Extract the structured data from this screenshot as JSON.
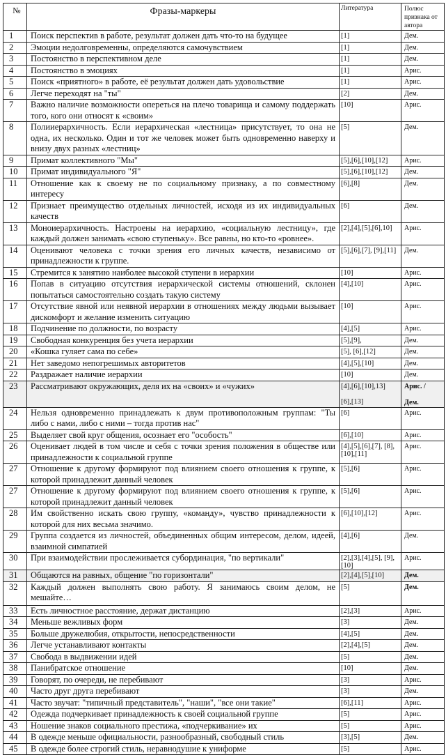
{
  "header": {
    "num": "№",
    "phrase": "Фразы-маркеры",
    "literature": "Литература",
    "pole": "Полюс признака от автора"
  },
  "rows": [
    {
      "num": "1",
      "phrase": "Поиск перспектив в работе, результат должен дать что-то на будущее",
      "lit": "[1]",
      "pole": "Дем."
    },
    {
      "num": "2",
      "phrase": "Эмоции недолговременны, определяются самочувствием",
      "lit": "[1]",
      "pole": "Дем."
    },
    {
      "num": "3",
      "phrase": "Постоянство в перспективном деле",
      "lit": "[1]",
      "pole": "Дем."
    },
    {
      "num": "4",
      "phrase": "Постоянство в эмоциях",
      "lit": "[1]",
      "pole": "Арис."
    },
    {
      "num": "5",
      "phrase": "Поиск «приятного» в работе, её результат должен дать удовольствие",
      "lit": "[1]",
      "pole": "Арис."
    },
    {
      "num": "6",
      "phrase": "Легче переходят на \"ты\"",
      "lit": "[2]",
      "pole": "Дем."
    },
    {
      "num": "7",
      "phrase": "Важно наличие возможности опереться на плечо товарища и самому поддержать того, кого они относят к «своим»",
      "lit": "[10]",
      "pole": "Арис."
    },
    {
      "num": "8",
      "phrase": "Полииерархичность. Если иерархическая «лестница» присутствует, то она не одна, их несколько. Один и тот же человек может быть одновременно наверху и внизу двух разных «лестниц»",
      "lit": "[5]",
      "pole": "Дем."
    },
    {
      "num": "9",
      "phrase": "Примат коллективного \"Мы\"",
      "lit": "[5],[6],[10],[12]",
      "pole": "Арис."
    },
    {
      "num": "10",
      "phrase": "Примат индивидуального \"Я\"",
      "lit": "[5],[6],[10],[12]",
      "pole": "Дем."
    },
    {
      "num": "11",
      "phrase": "Отношение как к своему не по социальному признаку, а по совместному интересу",
      "lit": "[6],[8]",
      "pole": "Дем."
    },
    {
      "num": "12",
      "phrase": "Признает преимущество отдельных личностей, исходя из их индивидуальных качеств",
      "lit": "[6]",
      "pole": "Дем."
    },
    {
      "num": "13",
      "phrase": "Моноиерархичность. Настроены на иерархию, «социальную лестницу», где каждый должен занимать «свою ступеньку». Все равны, но кто-то «ровнее».",
      "lit": "[2],[4],[5],[6],10]",
      "pole": "Арис."
    },
    {
      "num": "14",
      "phrase": "Оценивают человека с точки зрения его личных качеств, независимо от принадлежности к группе.",
      "lit": "[5],[6],[7], [9],[11]",
      "pole": "Дем."
    },
    {
      "num": "15",
      "phrase": "Стремится к занятию наиболее высокой ступени в иерархии",
      "lit": "[10]",
      "pole": "Арис."
    },
    {
      "num": "16",
      "phrase": "Попав в ситуацию отсутствия иерархической системы отношений, склонен попытаться самостоятельно создать такую систему",
      "lit": "[4],[10]",
      "pole": "Арис."
    },
    {
      "num": "17",
      "phrase": "Отсутствие явной или неявной иерархии в отношениях между людьми вызывает дискомфорт и желание изменить ситуацию",
      "lit": "[10]",
      "pole": "Арис."
    },
    {
      "num": "18",
      "phrase": "Подчинение по должности, по возрасту",
      "lit": "[4],[5]",
      "pole": "Арис."
    },
    {
      "num": "19",
      "phrase": "Свободная конкуренция без учета иерархии",
      "lit": "[5],[9],",
      "pole": "Дем."
    },
    {
      "num": "20",
      "phrase": "«Кошка гуляет сама по себе»",
      "lit": "[5], [6],[12]",
      "pole": "Дем."
    },
    {
      "num": "21",
      "phrase": "Нет заведомо непогрешимых авторитетов",
      "lit": "[4],[5],[10]",
      "pole": "Дем."
    },
    {
      "num": "22",
      "phrase": "Раздражает наличие иерархии",
      "lit": "[10]",
      "pole": "Дем."
    },
    {
      "num": "23",
      "phrase": "Рассматривают окружающих, деля их на «своих» и «чужих»",
      "lit": "[4],[6],[10],13]",
      "lit_second": "[6],[13]",
      "pole": "Арис. /",
      "pole_second": "Дем."
    },
    {
      "num": "24",
      "phrase": "Нельзя одновременно принадлежать к двум противоположным группам: \"Ты либо с нами, либо с ними – тогда против нас\"",
      "lit": "[6]",
      "pole": "Арис."
    },
    {
      "num": "25",
      "phrase": "Выделяет свой круг общения, осознает его \"особость\"",
      "lit": "[6],[10]",
      "pole": "Арис."
    },
    {
      "num": "26",
      "phrase": "Оценивает людей в том числе и себя с точки зрения положения в обществе или принадлежности к социальной группе",
      "lit": "[4],[5],[6],[7], [8],[10],[11]",
      "pole": "Арис."
    },
    {
      "num": "27",
      "phrase": "Отношение к другому формируют под влиянием своего отношения к группе, к которой принадлежит данный человек",
      "lit": "[5],[6]",
      "pole": "Арис."
    },
    {
      "num": "27",
      "phrase": "Отношение к другому формируют под влиянием своего отношения к группе, к которой принадлежит данный человек",
      "lit": "[5],[6]",
      "pole": "Арис."
    },
    {
      "num": "28",
      "phrase": "Им свойственно искать свою группу, «команду», чувство принадлежности к которой для них весьма значимо.",
      "lit": "[6],[10],[12]",
      "pole": "Арис."
    },
    {
      "num": "29",
      "phrase": "Группа создается из личностей, объединенных общим интересом, делом, идеей, взаимной симпатией",
      "lit": "[4],[6]",
      "pole": "Дем."
    },
    {
      "num": "30",
      "phrase": "При взаимодействии прослеживается субординация, \"по вертикали\"",
      "lit": "[2],[3],[4],[5], [9],[10]",
      "pole": "Арис."
    },
    {
      "num": "31",
      "phrase": "Общаются на равных, общение \"по горизонтали\"",
      "lit": "[2],[4],[5],[10]",
      "pole": "Дем."
    },
    {
      "num": "32",
      "phrase": "Каждый должен выполнять свою работу. Я занимаюсь своим делом, не мешайте…",
      "lit": "[5]",
      "pole": "Дем."
    },
    {
      "num": "33",
      "phrase": "Есть личностное расстояние, держат дистанцию",
      "lit": "[2],[3]",
      "pole": "Арис."
    },
    {
      "num": "34",
      "phrase": "Меньше вежливых форм",
      "lit": "[3]",
      "pole": "Дем."
    },
    {
      "num": "35",
      "phrase": "Больше дружелюбия, открытости, непосредственности",
      "lit": "[4],[5]",
      "pole": "Дем."
    },
    {
      "num": "36",
      "phrase": "Легче устанавливают контакты",
      "lit": "[2],[4],[5]",
      "pole": "Дем."
    },
    {
      "num": "37",
      "phrase": "Свобода в выдвижении идей",
      "lit": "[5]",
      "pole": "Дем."
    },
    {
      "num": "38",
      "phrase": "Панибратское отношение",
      "lit": "[10]",
      "pole": "Дем."
    },
    {
      "num": "39",
      "phrase": "Говорят, по очереди, не перебивают",
      "lit": "[3]",
      "pole": "Арис."
    },
    {
      "num": "40",
      "phrase": "Часто друг друга перебивают",
      "lit": "[3]",
      "pole": "Дем."
    },
    {
      "num": "41",
      "phrase": "Часто звучат: \"типичный представитель\", \"наши\", \"все они такие\"",
      "lit": "[6],[11]",
      "pole": "Арис."
    },
    {
      "num": "42",
      "phrase": "Одежда подчеркивает принадлежность к своей социальной группе",
      "lit": "[5]",
      "pole": "Арис."
    },
    {
      "num": "43",
      "phrase": "Ношение знаков социального престижа, «подчеркивание» их",
      "lit": "[5]",
      "pole": "Арис."
    },
    {
      "num": "44",
      "phrase": "В одежде меньше официальности, разнообразный, свободный стиль",
      "lit": "[3],[5]",
      "pole": "Дем."
    },
    {
      "num": "45",
      "phrase": "В одежде более строгий стиль, неравнодушие к униформе",
      "lit": "[5]",
      "pole": "Арис."
    }
  ]
}
